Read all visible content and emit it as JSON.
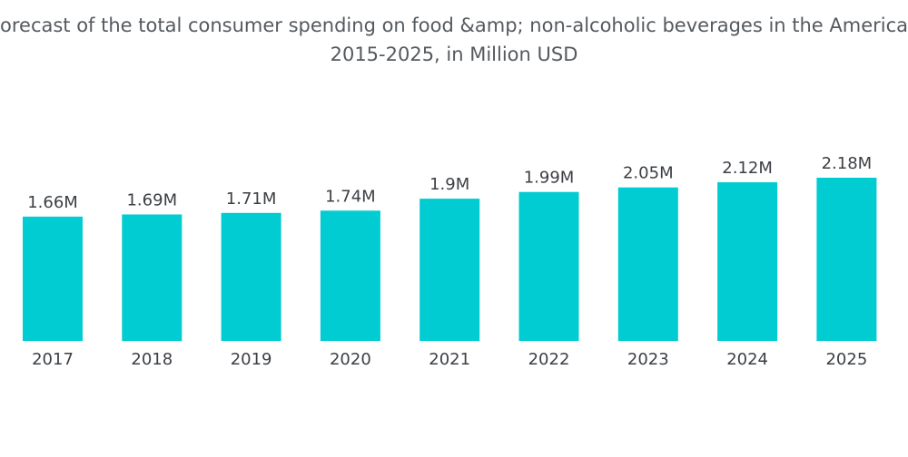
{
  "chart_data": {
    "type": "bar",
    "title_line1": "orecast of the total consumer spending on food &amp; non-alcoholic beverages in the Americas",
    "title_line2": "2015-2025, in Million USD",
    "categories": [
      "2017",
      "2018",
      "2019",
      "2020",
      "2021",
      "2022",
      "2023",
      "2024",
      "2025"
    ],
    "values": [
      1.66,
      1.69,
      1.71,
      1.74,
      1.9,
      1.99,
      2.05,
      2.12,
      2.18
    ],
    "data_labels": [
      "1.66M",
      "1.69M",
      "1.71M",
      "1.74M",
      "1.9M",
      "1.99M",
      "2.05M",
      "2.12M",
      "2.18M"
    ],
    "xlabel": "",
    "ylabel": "",
    "ylim": [
      0,
      2.18
    ],
    "grid": false,
    "legend": "none",
    "bar_color": "#00ccd1"
  }
}
